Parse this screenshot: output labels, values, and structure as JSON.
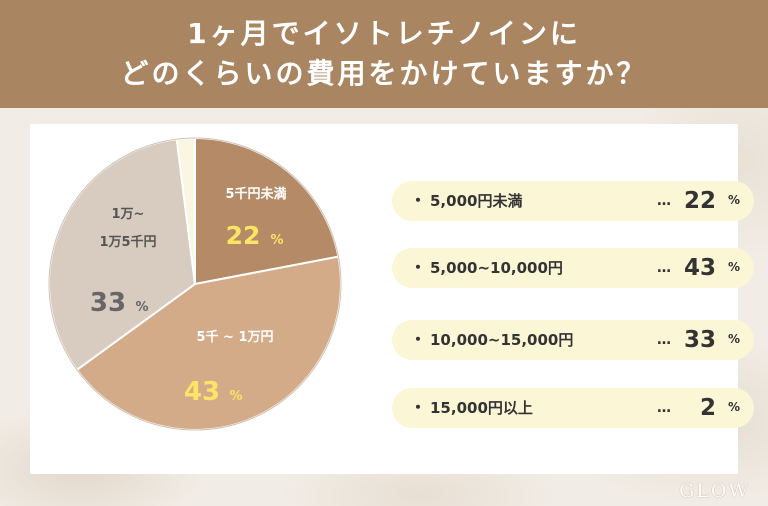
{
  "header": {
    "line1": "1ヶ月でイソトレチノインに",
    "line2": "どのくらいの費用をかけていますか？"
  },
  "chart_data": {
    "type": "pie",
    "title": "",
    "unit": "%",
    "categories": [
      "5,000円未満",
      "5,000~10,000円",
      "10,000~15,000円",
      "15,000円以上"
    ],
    "values": [
      22,
      43,
      33,
      2
    ],
    "slice_labels": [
      "5千円未満",
      "5千 ~ 1万円",
      "1万~ 1万5千円",
      ""
    ],
    "colors": [
      "#b48a67",
      "#d3ab88",
      "#d8cbc0",
      "#faf6e2"
    ],
    "label_colors": [
      "#ffffff",
      "#ffffff",
      "#555555",
      "#555555"
    ],
    "value_colors": [
      "#fce467",
      "#fce467",
      "#666666",
      "#666666"
    ],
    "start_angle_deg": 0,
    "direction": "clockwise"
  },
  "pie_labels": {
    "s0_name": "5千円未満",
    "s0_value": "22",
    "s1_name": "5千 ~ 1万円",
    "s1_value": "43",
    "s2_name_line1": "1万~",
    "s2_name_line2": "1万5千円",
    "s2_value": "33",
    "percent_sign": "%"
  },
  "list": {
    "bullet": "・",
    "dots": "…",
    "unit": "%",
    "items": [
      {
        "label": "5,000円未満",
        "value": "22"
      },
      {
        "label": "5,000~10,000円",
        "value": "43"
      },
      {
        "label": "10,000~15,000円",
        "value": "33"
      },
      {
        "label": "15,000円以上",
        "value": "2"
      }
    ]
  },
  "logo": {
    "text": "GLOW"
  },
  "colors": {
    "header_bg": "#a98562",
    "list_bg": "#fbf6d6",
    "highlight_value": "#fce467"
  }
}
